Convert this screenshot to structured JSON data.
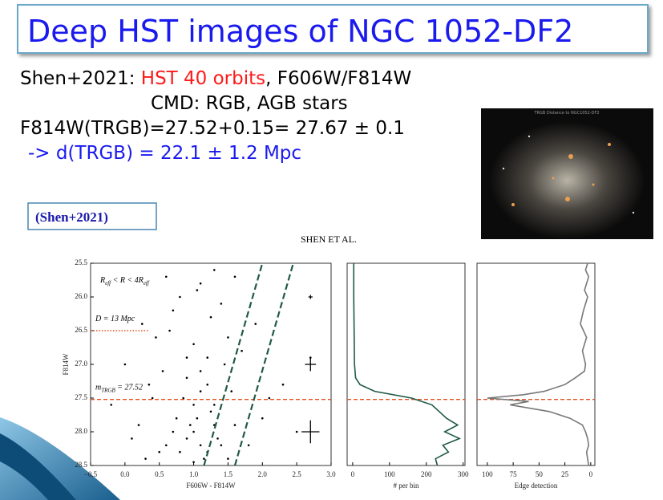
{
  "slide": {
    "title": "Deep HST images of NGC 1052-DF2",
    "lines": [
      [
        "Shen+2021: ",
        "HST 40 orbits",
        ", F606W/F814W"
      ],
      [
        "CMD: RGB, AGB stars"
      ],
      [
        "F814W(TRGB)=27.52+0.15= 27.67 ± 0.1"
      ],
      [
        "-> d(TRGB) = 22.1 ± 1.2 Mpc"
      ]
    ],
    "reference": "(Shen+2021)",
    "image_caption": "TRGB Distance to NGC1052-DF2",
    "figure_header": "Shen et al."
  },
  "chart_data": [
    {
      "type": "scatter",
      "xlabel": "F606W - F814W",
      "ylabel": "F814W",
      "color": "#000000",
      "xlim": [
        -0.5,
        3.0
      ],
      "ylim": [
        28.5,
        25.5
      ],
      "xticks": [
        {
          "value": -0.5,
          "label": "−0.5"
        },
        {
          "value": 0,
          "label": "0.0"
        },
        0.5,
        {
          "value": 1,
          "label": "1.0"
        },
        1.5,
        {
          "value": 2,
          "label": "2.0"
        },
        2.5,
        {
          "value": 3,
          "label": "3.0"
        }
      ],
      "yticks": [
        25.5,
        {
          "value": 26,
          "label": "26.0"
        },
        26.5,
        {
          "value": 27,
          "label": "27.0"
        },
        27.5,
        {
          "value": 28,
          "label": "28.0"
        },
        28.5
      ],
      "x": [
        1.1,
        1.0,
        1.2,
        0.9,
        1.3,
        1.05,
        1.15,
        0.8,
        1.4,
        1.0,
        0.7,
        1.25,
        1.1,
        0.95,
        1.5,
        0.6,
        1.2,
        1.35,
        0.85,
        1.0,
        1.6,
        0.5,
        1.1,
        1.3,
        0.9,
        0.3,
        1.45,
        0.75,
        1.2,
        1.8,
        0.4,
        1.0,
        1.55,
        0.65,
        2.0,
        0.2,
        1.25,
        0.9,
        1.7,
        0.55,
        1.4,
        0.1,
        2.3,
        0.8,
        1.1,
        0.45,
        1.9,
        0.35,
        1.6,
        0.0,
        2.5,
        1.3,
        0.7,
        2.1,
        0.25,
        1.05,
        2.7,
        0.6,
        1.5,
        -0.2
      ],
      "y": [
        28.2,
        28.0,
        28.3,
        28.1,
        27.9,
        27.8,
        28.4,
        28.3,
        28.2,
        27.6,
        28.0,
        27.7,
        27.4,
        27.9,
        28.4,
        28.2,
        27.3,
        28.1,
        27.5,
        28.45,
        27.9,
        28.3,
        27.1,
        27.6,
        27.2,
        28.4,
        27.0,
        27.8,
        26.9,
        28.2,
        27.5,
        26.7,
        27.4,
        26.5,
        27.8,
        27.9,
        26.3,
        26.9,
        26.8,
        27.1,
        26.1,
        28.1,
        27.3,
        26.0,
        25.8,
        26.6,
        26.4,
        27.3,
        25.7,
        27.0,
        28.0,
        25.6,
        26.2,
        27.5,
        26.4,
        25.9,
        26.9,
        25.7,
        26.6,
        27.6
      ],
      "errorbars": {
        "x": [
          2.7,
          2.7,
          2.7
        ],
        "y": [
          26.0,
          27.0,
          28.0
        ],
        "xerr": [
          0.03,
          0.08,
          0.13
        ],
        "yerr": [
          0.03,
          0.1,
          0.17
        ]
      },
      "guide_lines": [
        {
          "x": [
            1.15,
            2.0
          ],
          "y": [
            28.5,
            25.5
          ]
        },
        {
          "x": [
            1.6,
            2.45
          ],
          "y": [
            28.5,
            25.5
          ]
        }
      ],
      "guide_color": "#1f5a45",
      "distance_line": {
        "x": [
          -0.5,
          0.35
        ],
        "y": 26.5,
        "color": "#e05020"
      },
      "trgb_line": 27.52,
      "trgb_color": "#e05020",
      "annotations": {
        "region": [
          "R",
          "eff",
          " < R < 4R",
          "eff"
        ],
        "distance": "D = 13 Mpc",
        "trgb": [
          "m",
          "TRGB",
          " = 27.52"
        ]
      }
    },
    {
      "type": "line",
      "xlabel": "# per bin",
      "color": "#1f5a45",
      "xlim": [
        -15,
        305
      ],
      "ylim": [
        28.5,
        25.5
      ],
      "xticks": [
        0,
        100,
        200,
        300
      ],
      "x": [
        3,
        3,
        4,
        5,
        8,
        20,
        60,
        160,
        215,
        235,
        255,
        285,
        250,
        290,
        245,
        260,
        225,
        230
      ],
      "y": [
        25.5,
        26.0,
        26.5,
        27.0,
        27.2,
        27.3,
        27.4,
        27.5,
        27.6,
        27.7,
        27.8,
        27.9,
        28.0,
        28.1,
        28.2,
        28.3,
        28.4,
        28.5
      ],
      "trgb_line": 27.52,
      "trgb_color": "#e05020"
    },
    {
      "type": "line",
      "xlabel": "Edge detection",
      "color": "#777777",
      "xlim": [
        110,
        -4
      ],
      "ylim": [
        28.5,
        25.5
      ],
      "xticks": [
        100,
        75,
        50,
        25,
        0
      ],
      "x": [
        3,
        5,
        2,
        4,
        6,
        3,
        7,
        10,
        4,
        8,
        5,
        6,
        15,
        25,
        45,
        65,
        100,
        60,
        78,
        40,
        20,
        8,
        5,
        3,
        2,
        4,
        3,
        2
      ],
      "y": [
        25.5,
        25.6,
        25.7,
        25.8,
        25.9,
        26.0,
        26.2,
        26.4,
        26.6,
        26.8,
        27.0,
        27.1,
        27.2,
        27.3,
        27.4,
        27.45,
        27.5,
        27.55,
        27.6,
        27.7,
        27.8,
        27.9,
        28.0,
        28.1,
        28.2,
        28.3,
        28.4,
        28.5
      ],
      "trgb_line": 27.52,
      "trgb_color": "#e05020"
    }
  ]
}
